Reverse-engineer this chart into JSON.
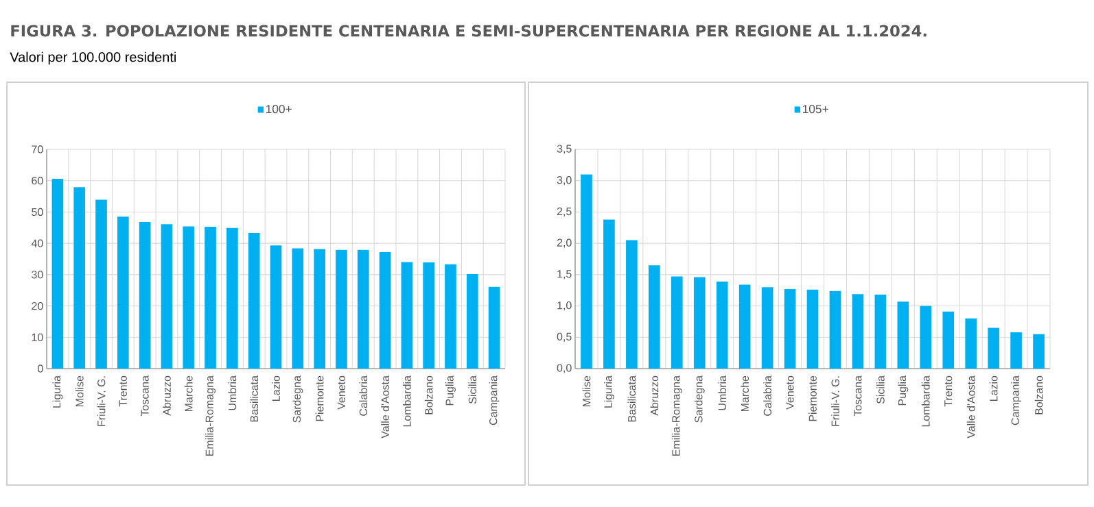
{
  "chart_data": [
    {
      "type": "bar",
      "title": "FIGURA 3. POPOLAZIONE RESIDENTE CENTENARIA E SEMI-SUPERCENTENARIA PER REGIONE AL 1.1.2024.",
      "subtitle": "Valori per 100.000 residenti",
      "categories": [
        "Liguria",
        "Molise",
        "Friuli-V. G.",
        "Trento",
        "Toscana",
        "Abruzzo",
        "Marche",
        "Emilia-Romagna",
        "Umbria",
        "Basilicata",
        "Lazio",
        "Sardegna",
        "Piemonte",
        "Veneto",
        "Calabria",
        "Valle d'Aosta",
        "Lombardia",
        "Bolzano",
        "Puglia",
        "Sicilia",
        "Campania"
      ],
      "series": [
        {
          "name": "100+",
          "color": "#00b0f0",
          "values": [
            60.6,
            57.9,
            53.9,
            48.5,
            46.8,
            46.1,
            45.4,
            45.3,
            44.9,
            43.3,
            39.3,
            38.4,
            38.2,
            37.9,
            37.9,
            37.2,
            34.0,
            33.9,
            33.3,
            30.2,
            26.1
          ]
        }
      ],
      "ylim": [
        0,
        70
      ],
      "yticks": [
        0,
        10,
        20,
        30,
        40,
        50,
        60,
        70
      ],
      "grid": true,
      "legend": "top"
    },
    {
      "type": "bar",
      "categories": [
        "Molise",
        "Liguria",
        "Basilicata",
        "Abruzzo",
        "Emilia-Romagna",
        "Sardegna",
        "Umbria",
        "Marche",
        "Calabria",
        "Veneto",
        "Piemonte",
        "Friuli-V. G.",
        "Toscana",
        "Sicilia",
        "Puglia",
        "Lombardia",
        "Trento",
        "Valle d'Aosta",
        "Lazio",
        "Campania",
        "Bolzano"
      ],
      "series": [
        {
          "name": "105+",
          "color": "#00b0f0",
          "values": [
            3.1,
            2.38,
            2.05,
            1.65,
            1.47,
            1.46,
            1.39,
            1.34,
            1.3,
            1.27,
            1.26,
            1.24,
            1.19,
            1.18,
            1.07,
            1.0,
            0.91,
            0.8,
            0.65,
            0.58,
            0.55
          ]
        }
      ],
      "ylim": [
        0,
        3.5
      ],
      "yticks": [
        {
          "value": 0,
          "label": "0,0"
        },
        {
          "value": 0.5,
          "label": "0,5"
        },
        {
          "value": 1,
          "label": "1,0"
        },
        {
          "value": 1.5,
          "label": "1,5"
        },
        {
          "value": 2,
          "label": "2,0"
        },
        {
          "value": 2.5,
          "label": "2,5"
        },
        {
          "value": 3,
          "label": "3,0"
        },
        {
          "value": 3.5,
          "label": "3,5"
        }
      ],
      "grid": true,
      "legend": "top"
    }
  ]
}
